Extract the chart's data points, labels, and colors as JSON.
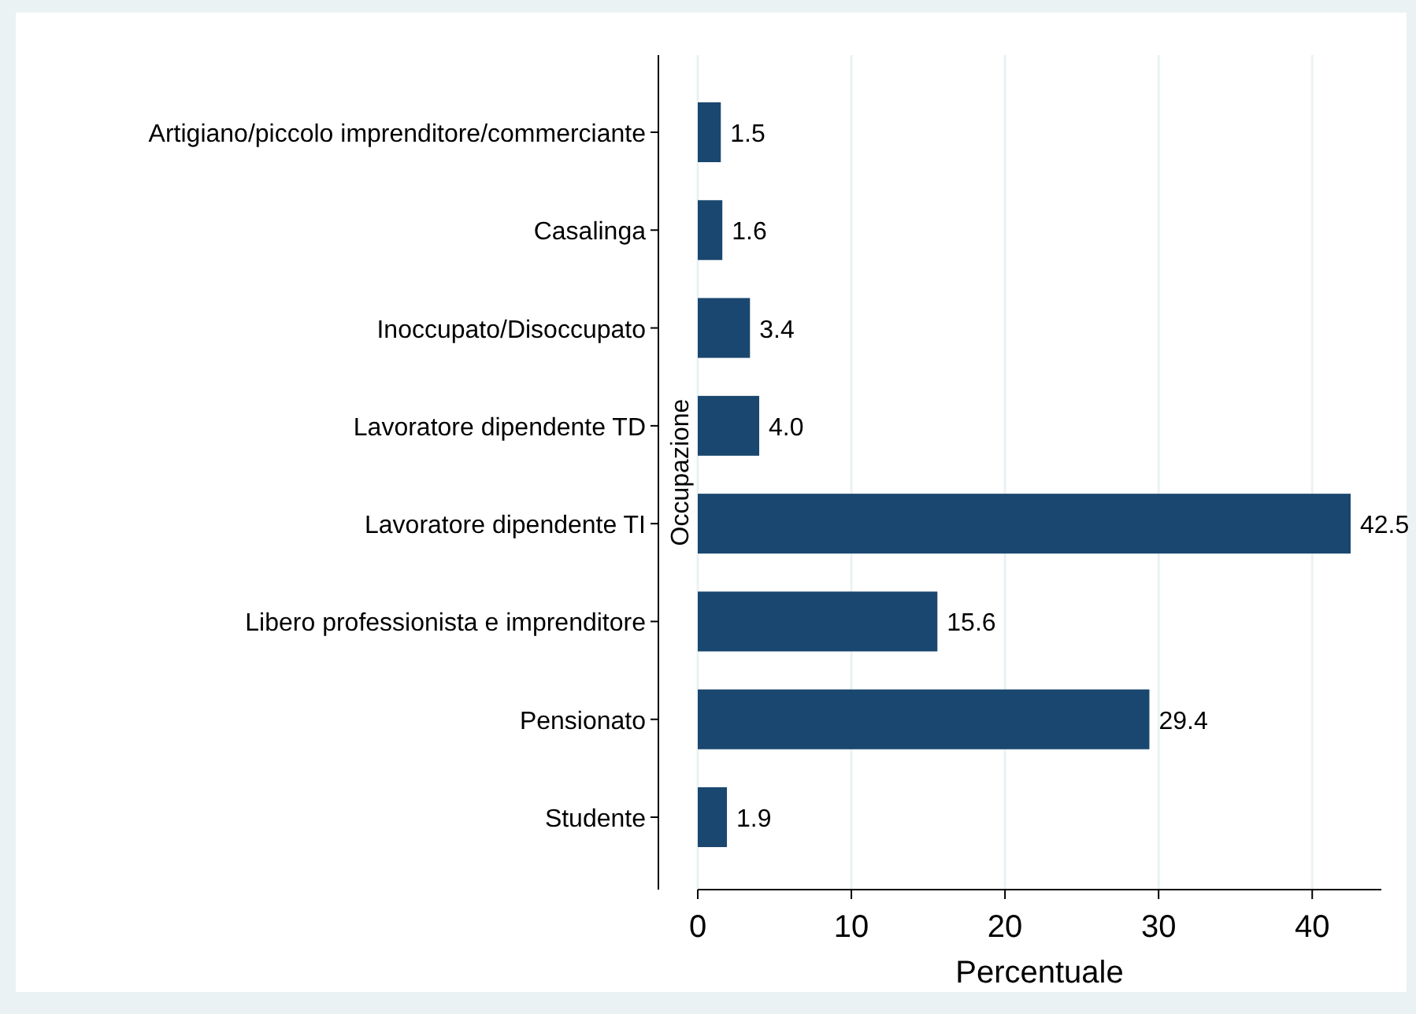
{
  "chart_data": {
    "type": "bar",
    "orientation": "horizontal",
    "xlabel": "Percentuale",
    "ylabel": "Occupazione",
    "categories": [
      "Artigiano/piccolo imprenditore/commerciante",
      "Casalinga",
      "Inoccupato/Disoccupato",
      "Lavoratore dipendente TD",
      "Lavoratore dipendente TI",
      "Libero professionista e imprenditore",
      "Pensionato",
      "Studente"
    ],
    "values": [
      1.5,
      1.6,
      3.4,
      4.0,
      42.5,
      15.6,
      29.4,
      1.9
    ],
    "value_labels": [
      "1.5",
      "1.6",
      "3.4",
      "4.0",
      "42.5",
      "15.6",
      "29.4",
      "1.9"
    ],
    "color": "#1a476f",
    "xlim": [
      0,
      44.5
    ],
    "xticks": [
      0,
      10,
      20,
      30,
      40
    ],
    "grid": "x"
  }
}
